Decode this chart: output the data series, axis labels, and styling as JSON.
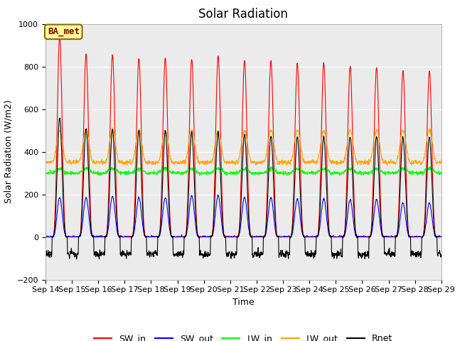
{
  "title": "Solar Radiation",
  "ylabel": "Solar Radiation (W/m2)",
  "xlabel": "Time",
  "ylim": [
    -200,
    1000
  ],
  "x_tick_labels": [
    "Sep 14",
    "Sep 15",
    "Sep 16",
    "Sep 17",
    "Sep 18",
    "Sep 19",
    "Sep 20",
    "Sep 21",
    "Sep 22",
    "Sep 23",
    "Sep 24",
    "Sep 25",
    "Sep 26",
    "Sep 27",
    "Sep 28",
    "Sep 29"
  ],
  "legend_labels": [
    "SW_in",
    "SW_out",
    "LW_in",
    "LW_out",
    "Rnet"
  ],
  "colors": {
    "SW_in": "#ff0000",
    "SW_out": "#0000ff",
    "LW_in": "#00ff00",
    "LW_out": "#ffa500",
    "Rnet": "#000000"
  },
  "annotation_text": "BA_met",
  "annotation_facecolor": "#ffff99",
  "annotation_edgecolor": "#8B6914",
  "bg_color": "#ebebeb",
  "n_days": 15,
  "hours_per_day": 24,
  "dt": 0.25,
  "SW_in_peaks": [
    940,
    860,
    855,
    840,
    840,
    835,
    850,
    825,
    825,
    810,
    815,
    800,
    795,
    780,
    780
  ],
  "SW_out_peaks": [
    185,
    185,
    190,
    185,
    185,
    195,
    195,
    185,
    185,
    180,
    180,
    175,
    175,
    160,
    160
  ],
  "LW_in_base": 300,
  "LW_out_base": 350,
  "Rnet_day_peaks": [
    560,
    510,
    505,
    500,
    495,
    490,
    490,
    480,
    475,
    470,
    470,
    470,
    470,
    470,
    470
  ],
  "Rnet_night": -80,
  "title_fontsize": 12,
  "label_fontsize": 9,
  "tick_fontsize": 8,
  "yticks": [
    -200,
    0,
    200,
    400,
    600,
    800,
    1000
  ]
}
